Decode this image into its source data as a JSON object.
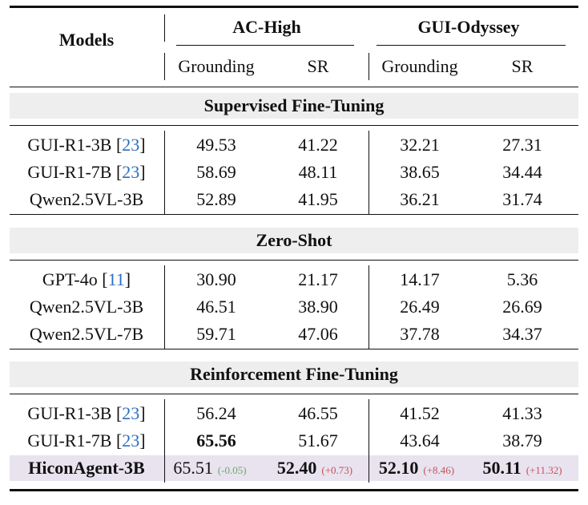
{
  "header": {
    "models": "Models",
    "groups": [
      "AC-High",
      "GUI-Odyssey"
    ],
    "subcolumns": [
      "Grounding",
      "SR",
      "Grounding",
      "SR"
    ]
  },
  "sections": [
    {
      "title": "Supervised Fine-Tuning",
      "rows": [
        {
          "model": "GUI-R1-3B",
          "cite": "23",
          "values": [
            "49.53",
            "41.22",
            "32.21",
            "27.31"
          ]
        },
        {
          "model": "GUI-R1-7B",
          "cite": "23",
          "values": [
            "58.69",
            "48.11",
            "38.65",
            "34.44"
          ]
        },
        {
          "model": "Qwen2.5VL-3B",
          "cite": "",
          "values": [
            "52.89",
            "41.95",
            "36.21",
            "31.74"
          ]
        }
      ]
    },
    {
      "title": "Zero-Shot",
      "rows": [
        {
          "model": "GPT-4o",
          "cite": "11",
          "values": [
            "30.90",
            "21.17",
            "14.17",
            "5.36"
          ]
        },
        {
          "model": "Qwen2.5VL-3B",
          "cite": "",
          "values": [
            "46.51",
            "38.90",
            "26.49",
            "26.69"
          ]
        },
        {
          "model": "Qwen2.5VL-7B",
          "cite": "",
          "values": [
            "59.71",
            "47.06",
            "37.78",
            "34.37"
          ]
        }
      ]
    },
    {
      "title": "Reinforcement Fine-Tuning",
      "rows": [
        {
          "model": "GUI-R1-3B",
          "cite": "23",
          "values": [
            "56.24",
            "46.55",
            "41.52",
            "41.33"
          ]
        },
        {
          "model": "GUI-R1-7B",
          "cite": "23",
          "values": [
            "65.56",
            "51.67",
            "43.64",
            "38.79"
          ],
          "bold": [
            true,
            false,
            false,
            false
          ]
        },
        {
          "model": "HiconAgent-3B",
          "cite": "",
          "highlight": true,
          "model_bold": true,
          "values": [
            "65.51",
            "52.40",
            "52.10",
            "50.11"
          ],
          "bold": [
            false,
            true,
            true,
            true
          ],
          "deltas": [
            "(-0.05)",
            "(+0.73)",
            "(+8.46)",
            "(+11.32)"
          ]
        }
      ]
    }
  ],
  "colors": {
    "citation": "#2a6fc0",
    "highlight_row": "#e8e3ef",
    "section_band": "#eeeeee",
    "delta_negative": "#6aaa6a",
    "delta_positive": "#c8505a"
  }
}
